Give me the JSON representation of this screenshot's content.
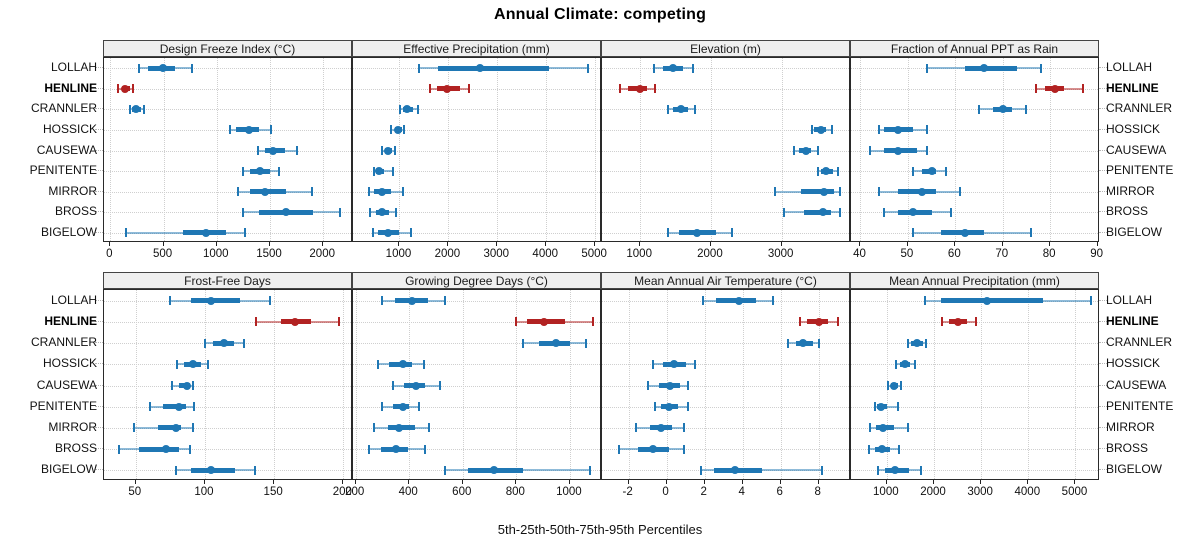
{
  "title": "Annual Climate: competing",
  "caption": "5th-25th-50th-75th-95th Percentiles",
  "sites": [
    "LOLLAH",
    "HENLINE",
    "CRANNLER",
    "HOSSICK",
    "CAUSEWA",
    "PENITENTE",
    "MIRROR",
    "BROSS",
    "BIGELOW"
  ],
  "highlight_site": "HENLINE",
  "colors": {
    "series_blue": "#1f77b4",
    "series_red": "#b22222",
    "strip_bg": "#efefef",
    "grid": "#cfcfcf",
    "panel_border": "#2a2a2a"
  },
  "chart_data": [
    {
      "type": "dot-whisker",
      "title": "Design Freeze Index (°C)",
      "percentiles": [
        5,
        25,
        50,
        75,
        95
      ],
      "xlim": [
        -60,
        2280
      ],
      "ticks": [
        0,
        500,
        1000,
        1500,
        2000
      ],
      "values": {
        "LOLLAH": [
          270,
          355,
          490,
          605,
          770
        ],
        "HENLINE": [
          75,
          105,
          135,
          180,
          215
        ],
        "CRANNLER": [
          180,
          205,
          245,
          285,
          320
        ],
        "HOSSICK": [
          1120,
          1180,
          1300,
          1400,
          1510
        ],
        "CAUSEWA": [
          1390,
          1450,
          1530,
          1640,
          1750
        ],
        "PENITENTE": [
          1250,
          1310,
          1405,
          1500,
          1580
        ],
        "MIRROR": [
          1200,
          1310,
          1450,
          1650,
          1890
        ],
        "BROSS": [
          1250,
          1400,
          1655,
          1905,
          2155
        ],
        "BIGELOW": [
          150,
          680,
          895,
          1090,
          1265
        ]
      }
    },
    {
      "type": "dot-whisker",
      "title": "Effective Precipitation (mm)",
      "percentiles": [
        5,
        25,
        50,
        75,
        95
      ],
      "xlim": [
        50,
        5140
      ],
      "ticks": [
        1000,
        2000,
        3000,
        4000,
        5000
      ],
      "values": {
        "LOLLAH": [
          1400,
          1780,
          2640,
          4060,
          4860
        ],
        "HENLINE": [
          1630,
          1770,
          1970,
          2230,
          2430
        ],
        "CRANNLER": [
          1020,
          1070,
          1160,
          1270,
          1380
        ],
        "HOSSICK": [
          830,
          900,
          965,
          1050,
          1100
        ],
        "CAUSEWA": [
          650,
          700,
          775,
          845,
          900
        ],
        "PENITENTE": [
          470,
          520,
          590,
          690,
          860
        ],
        "MIRROR": [
          370,
          470,
          645,
          830,
          1080
        ],
        "BROSS": [
          400,
          510,
          635,
          795,
          920
        ],
        "BIGELOW": [
          460,
          560,
          760,
          1000,
          1240
        ]
      }
    },
    {
      "type": "dot-whisker",
      "title": "Elevation (m)",
      "percentiles": [
        5,
        25,
        50,
        75,
        95
      ],
      "xlim": [
        460,
        3980
      ],
      "ticks": [
        1000,
        2000,
        3000
      ],
      "values": {
        "LOLLAH": [
          1200,
          1320,
          1460,
          1600,
          1740
        ],
        "HENLINE": [
          710,
          830,
          1000,
          1100,
          1210
        ],
        "CRANNLER": [
          1390,
          1470,
          1575,
          1680,
          1780
        ],
        "HOSSICK": [
          3430,
          3460,
          3550,
          3630,
          3710
        ],
        "CAUSEWA": [
          3170,
          3240,
          3340,
          3415,
          3520
        ],
        "PENITENTE": [
          3510,
          3560,
          3630,
          3720,
          3790
        ],
        "MIRROR": [
          2910,
          3270,
          3600,
          3740,
          3830
        ],
        "BROSS": [
          3030,
          3320,
          3580,
          3700,
          3820
        ],
        "BIGELOW": [
          1390,
          1550,
          1800,
          2070,
          2300
        ]
      }
    },
    {
      "type": "dot-whisker",
      "title": "Fraction of Annual PPT as Rain",
      "percentiles": [
        5,
        25,
        50,
        75,
        95
      ],
      "xlim": [
        38,
        90.5
      ],
      "ticks": [
        40,
        50,
        60,
        70,
        80,
        90
      ],
      "values": {
        "LOLLAH": [
          54,
          62,
          66,
          73,
          78
        ],
        "HENLINE": [
          77,
          79,
          81,
          83,
          87
        ],
        "CRANNLER": [
          65,
          68,
          70,
          72,
          75
        ],
        "HOSSICK": [
          44,
          45,
          48,
          51,
          54
        ],
        "CAUSEWA": [
          42,
          45,
          48,
          52,
          54
        ],
        "PENITENTE": [
          51,
          53,
          55,
          56,
          58
        ],
        "MIRROR": [
          44,
          48,
          53,
          56,
          61
        ],
        "BROSS": [
          45,
          48,
          51,
          55,
          59
        ],
        "BIGELOW": [
          51,
          57,
          62,
          66,
          76
        ]
      }
    },
    {
      "type": "dot-whisker",
      "title": "Frost-Free Days",
      "percentiles": [
        5,
        25,
        50,
        75,
        95
      ],
      "xlim": [
        27,
        207
      ],
      "ticks": [
        50,
        100,
        150,
        200
      ],
      "values": {
        "LOLLAH": [
          75,
          90,
          104,
          125,
          147
        ],
        "HENLINE": [
          137,
          155,
          165,
          177,
          197
        ],
        "CRANNLER": [
          100,
          106,
          114,
          121,
          128
        ],
        "HOSSICK": [
          80,
          85,
          91,
          97,
          102
        ],
        "CAUSEWA": [
          76,
          81,
          87,
          89,
          91
        ],
        "PENITENTE": [
          60,
          70,
          81,
          86,
          92
        ],
        "MIRROR": [
          49,
          66,
          79,
          83,
          91
        ],
        "BROSS": [
          38,
          52,
          72,
          81,
          89
        ],
        "BIGELOW": [
          79,
          90,
          104,
          122,
          136
        ]
      }
    },
    {
      "type": "dot-whisker",
      "title": "Growing Degree Days (°C)",
      "percentiles": [
        5,
        25,
        50,
        75,
        95
      ],
      "xlim": [
        190,
        1120
      ],
      "ticks": [
        200,
        400,
        600,
        800,
        1000
      ],
      "values": {
        "LOLLAH": [
          300,
          345,
          410,
          470,
          535
        ],
        "HENLINE": [
          800,
          840,
          905,
          980,
          1085
        ],
        "CRANNLER": [
          825,
          885,
          950,
          1000,
          1060
        ],
        "HOSSICK": [
          285,
          325,
          375,
          410,
          455
        ],
        "CAUSEWA": [
          340,
          380,
          425,
          460,
          515
        ],
        "PENITENTE": [
          300,
          340,
          375,
          400,
          435
        ],
        "MIRROR": [
          270,
          320,
          360,
          420,
          475
        ],
        "BROSS": [
          250,
          295,
          350,
          395,
          460
        ],
        "BIGELOW": [
          535,
          620,
          715,
          825,
          1075
        ]
      }
    },
    {
      "type": "dot-whisker",
      "title": "Mean Annual Air Temperature (°C)",
      "percentiles": [
        5,
        25,
        50,
        75,
        95
      ],
      "xlim": [
        -3.4,
        9.7
      ],
      "ticks": [
        -2,
        0,
        2,
        4,
        6,
        8
      ],
      "values": {
        "LOLLAH": [
          1.9,
          2.6,
          3.8,
          4.7,
          5.6
        ],
        "HENLINE": [
          7.0,
          7.4,
          8.0,
          8.5,
          9.0
        ],
        "CRANNLER": [
          6.4,
          6.8,
          7.2,
          7.7,
          8.0
        ],
        "HOSSICK": [
          -0.7,
          -0.2,
          0.4,
          1.0,
          1.5
        ],
        "CAUSEWA": [
          -1.0,
          -0.4,
          0.2,
          0.7,
          1.1
        ],
        "PENITENTE": [
          -0.6,
          -0.3,
          0.1,
          0.6,
          1.1
        ],
        "MIRROR": [
          -1.6,
          -0.9,
          -0.3,
          0.3,
          0.9
        ],
        "BROSS": [
          -2.5,
          -1.5,
          -0.7,
          0.1,
          0.9
        ],
        "BIGELOW": [
          1.8,
          2.5,
          3.6,
          5.0,
          8.2
        ]
      }
    },
    {
      "type": "dot-whisker",
      "title": "Mean Annual Precipitation (mm)",
      "percentiles": [
        5,
        25,
        50,
        75,
        95
      ],
      "xlim": [
        240,
        5520
      ],
      "ticks": [
        1000,
        2000,
        3000,
        4000,
        5000
      ],
      "values": {
        "LOLLAH": [
          1800,
          2150,
          3120,
          4320,
          5320
        ],
        "HENLINE": [
          2170,
          2310,
          2500,
          2710,
          2890
        ],
        "CRANNLER": [
          1450,
          1520,
          1640,
          1760,
          1840
        ],
        "HOSSICK": [
          1200,
          1270,
          1380,
          1500,
          1590
        ],
        "CAUSEWA": [
          1030,
          1080,
          1160,
          1240,
          1290
        ],
        "PENITENTE": [
          740,
          790,
          880,
          1000,
          1230
        ],
        "MIRROR": [
          650,
          770,
          915,
          1150,
          1440
        ],
        "BROSS": [
          630,
          750,
          905,
          1070,
          1250
        ],
        "BIGELOW": [
          810,
          965,
          1175,
          1460,
          1730
        ]
      }
    }
  ]
}
